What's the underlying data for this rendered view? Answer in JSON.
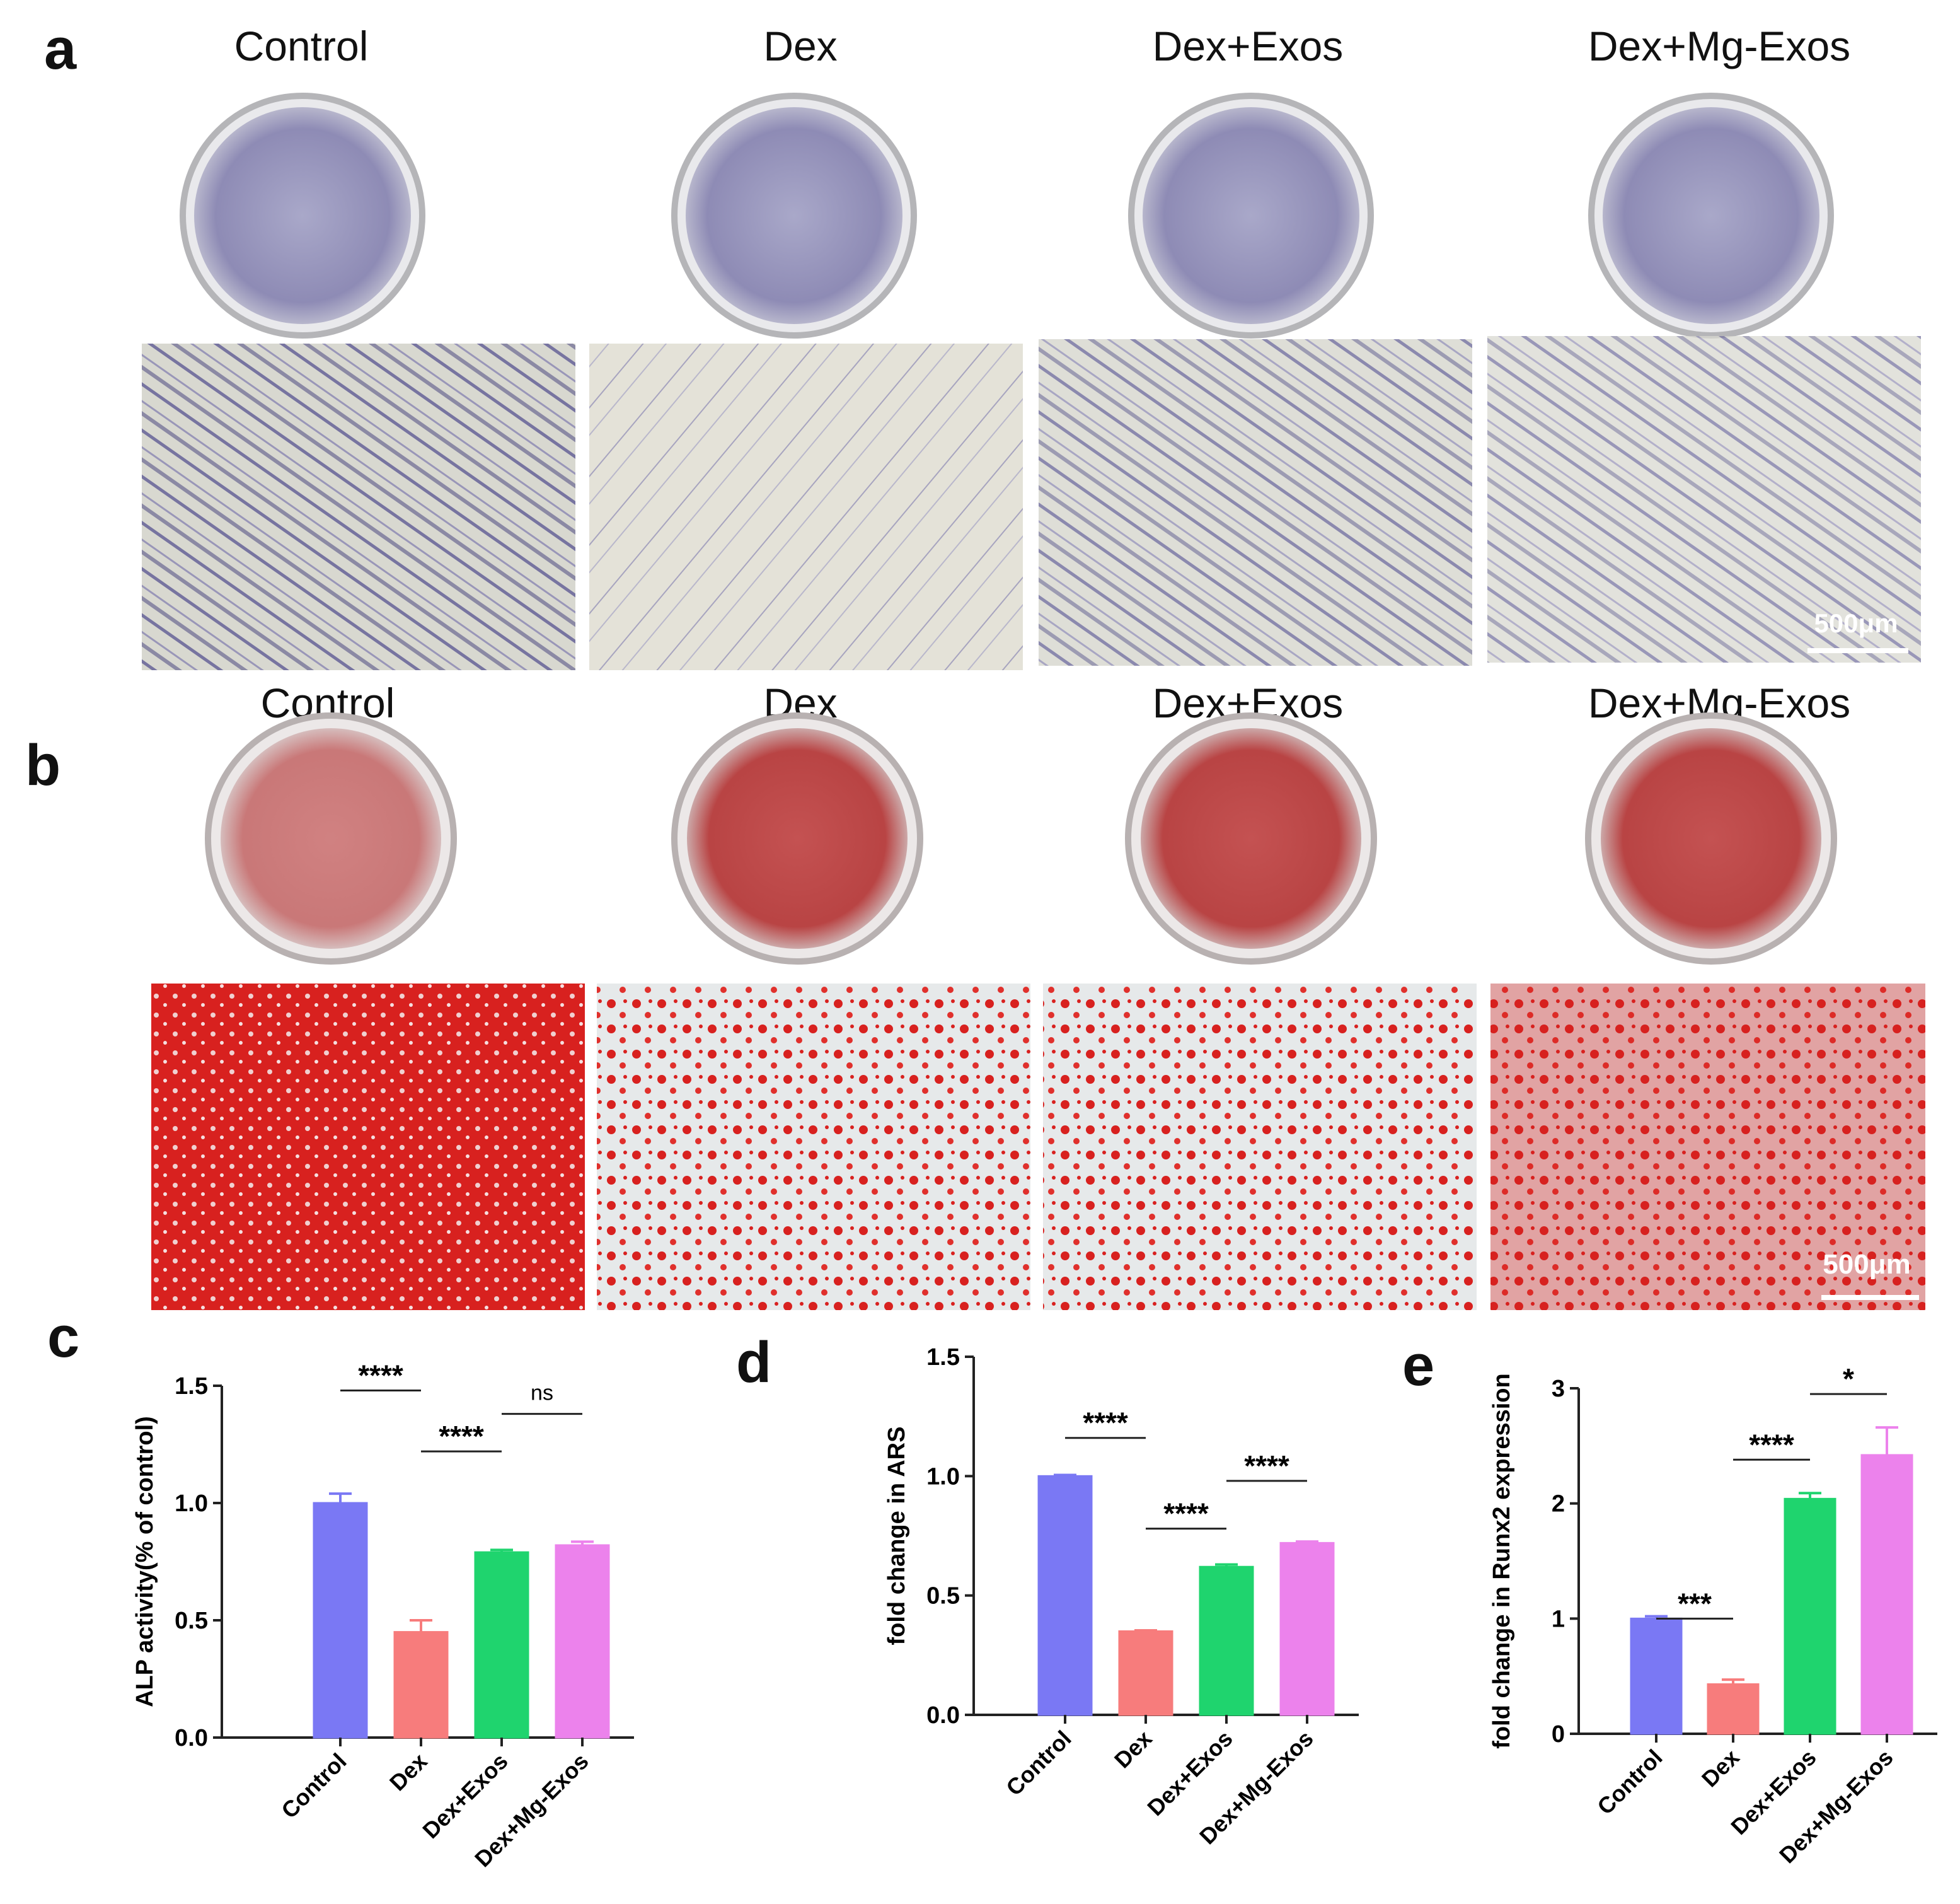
{
  "panels": {
    "a": {
      "letter": "a",
      "titles": [
        "Control",
        "Dex",
        "Dex+Exos",
        "Dex+Mg-Exos"
      ],
      "scale_bar": "500μm",
      "stain_color": "#5a5595"
    },
    "b": {
      "letter": "b",
      "titles": [
        "Control",
        "Dex",
        "Dex+Exos",
        "Dex+Mg-Exos"
      ],
      "scale_bar": "500μm",
      "stain_color": "#d41f1f"
    },
    "c": {
      "letter": "c"
    },
    "d": {
      "letter": "d"
    },
    "e": {
      "letter": "e"
    }
  },
  "bar_colors": [
    "#7a78f4",
    "#f77c7c",
    "#1fd46e",
    "#ec82ec"
  ],
  "chart_data": [
    {
      "type": "bar",
      "panel": "c",
      "categories": [
        "Control",
        "Dex",
        "Dex+Exos",
        "Dex+Mg-Exos"
      ],
      "values": [
        1.0,
        0.45,
        0.79,
        0.82
      ],
      "errors": [
        0.04,
        0.05,
        0.01,
        0.015
      ],
      "ylabel": "ALP activity(% of control)",
      "xlabel": "",
      "ylim": [
        0,
        1.5
      ],
      "yticks": [
        "0.0",
        "0.5",
        "1.0",
        "1.5"
      ],
      "significance": [
        {
          "from": 0,
          "to": 1,
          "label": "****",
          "y": 1.48
        },
        {
          "from": 1,
          "to": 2,
          "label": "****",
          "y": 1.22
        },
        {
          "from": 2,
          "to": 3,
          "label": "ns",
          "y": 1.38
        }
      ]
    },
    {
      "type": "bar",
      "panel": "d",
      "categories": [
        "Control",
        "Dex",
        "Dex+Exos",
        "Dex+Mg-Exos"
      ],
      "values": [
        1.0,
        0.35,
        0.62,
        0.72
      ],
      "errors": [
        0.005,
        0.004,
        0.01,
        0.006
      ],
      "ylabel": "fold change in ARS",
      "xlabel": "",
      "ylim": [
        0,
        1.5
      ],
      "yticks": [
        "0.0",
        "0.5",
        "1.0",
        "1.5"
      ],
      "significance": [
        {
          "from": 0,
          "to": 1,
          "label": "****",
          "y": 1.16
        },
        {
          "from": 1,
          "to": 2,
          "label": "****",
          "y": 0.78
        },
        {
          "from": 2,
          "to": 3,
          "label": "****",
          "y": 0.98
        }
      ]
    },
    {
      "type": "bar",
      "panel": "e",
      "categories": [
        "Control",
        "Dex",
        "Dex+Exos",
        "Dex+Mg-Exos"
      ],
      "values": [
        1.0,
        0.43,
        2.04,
        2.42
      ],
      "errors": [
        0.02,
        0.04,
        0.05,
        0.24
      ],
      "ylabel": "fold change in Runx2 expression",
      "xlabel": "",
      "ylim": [
        0,
        3
      ],
      "yticks": [
        "0",
        "1",
        "2",
        "3"
      ],
      "significance": [
        {
          "from": 0,
          "to": 1,
          "label": "***",
          "y": 1.0
        },
        {
          "from": 1,
          "to": 2,
          "label": "****",
          "y": 2.38
        },
        {
          "from": 2,
          "to": 3,
          "label": "*",
          "y": 2.95
        }
      ]
    }
  ]
}
